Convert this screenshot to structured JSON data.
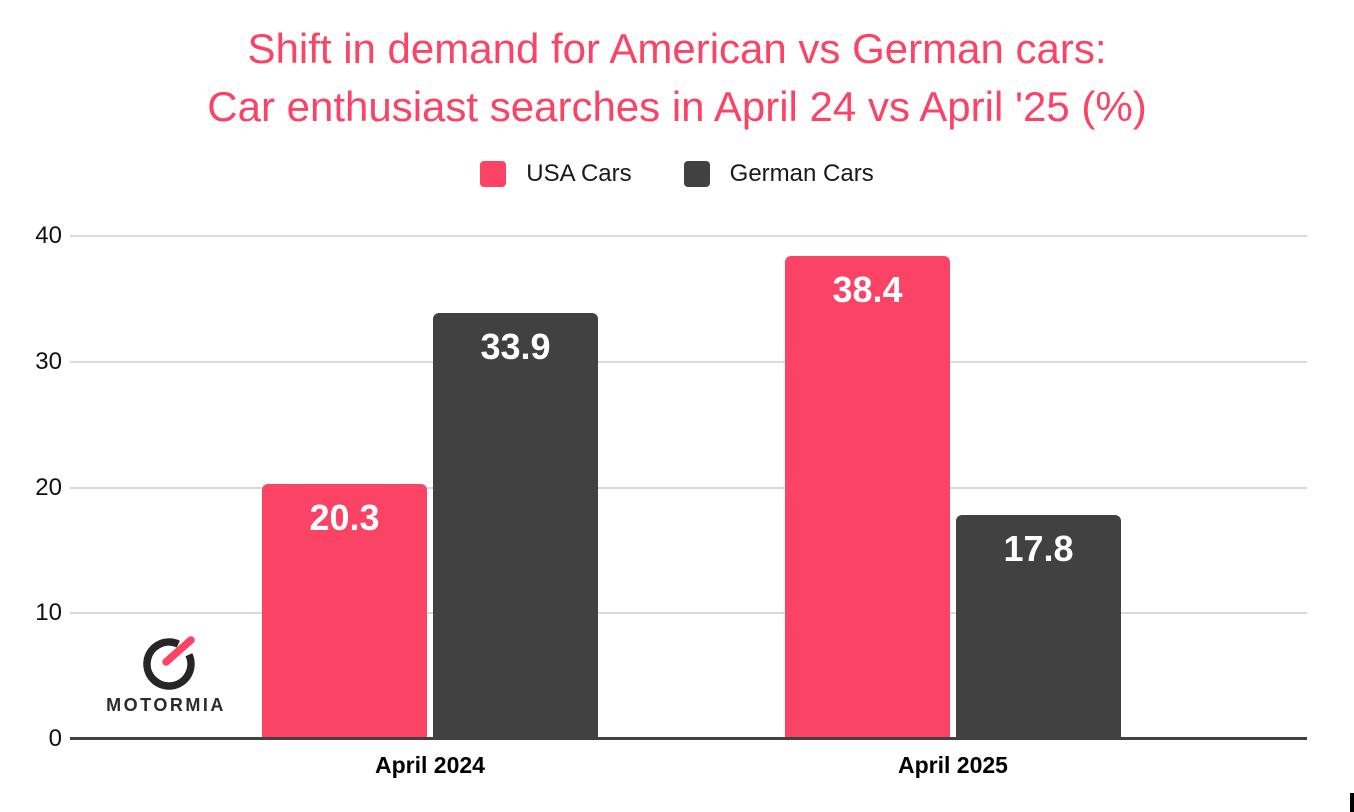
{
  "title": {
    "line1": "Shift in demand for American vs German cars:",
    "line2": "Car enthusiast searches in April 24 vs April '25 (%)"
  },
  "colors": {
    "accent_pink": "#FA4365",
    "dark_gray": "#414141",
    "gridline": "#D9D9D9",
    "axis_line": "#424242"
  },
  "legend": {
    "items": [
      {
        "label": "USA Cars",
        "color": "#FA4365"
      },
      {
        "label": "German Cars",
        "color": "#414141"
      }
    ]
  },
  "branding": {
    "wordmark": "MOTORMIA",
    "logo_icon": "speedometer-icon"
  },
  "chart_data": {
    "type": "bar",
    "title": "Shift in demand for American vs German cars: Car enthusiast searches in April 24 vs April '25 (%)",
    "categories": [
      "April 2024",
      "April 2025"
    ],
    "series": [
      {
        "name": "USA Cars",
        "color": "#FA4365",
        "values": [
          20.3,
          38.4
        ]
      },
      {
        "name": "German Cars",
        "color": "#414141",
        "values": [
          33.9,
          17.8
        ]
      }
    ],
    "xlabel": "",
    "ylabel": "",
    "ylim": [
      0,
      40
    ],
    "yticks": [
      0,
      10,
      20,
      30,
      40
    ],
    "grid": true,
    "legend_position": "top",
    "value_labels": true
  }
}
